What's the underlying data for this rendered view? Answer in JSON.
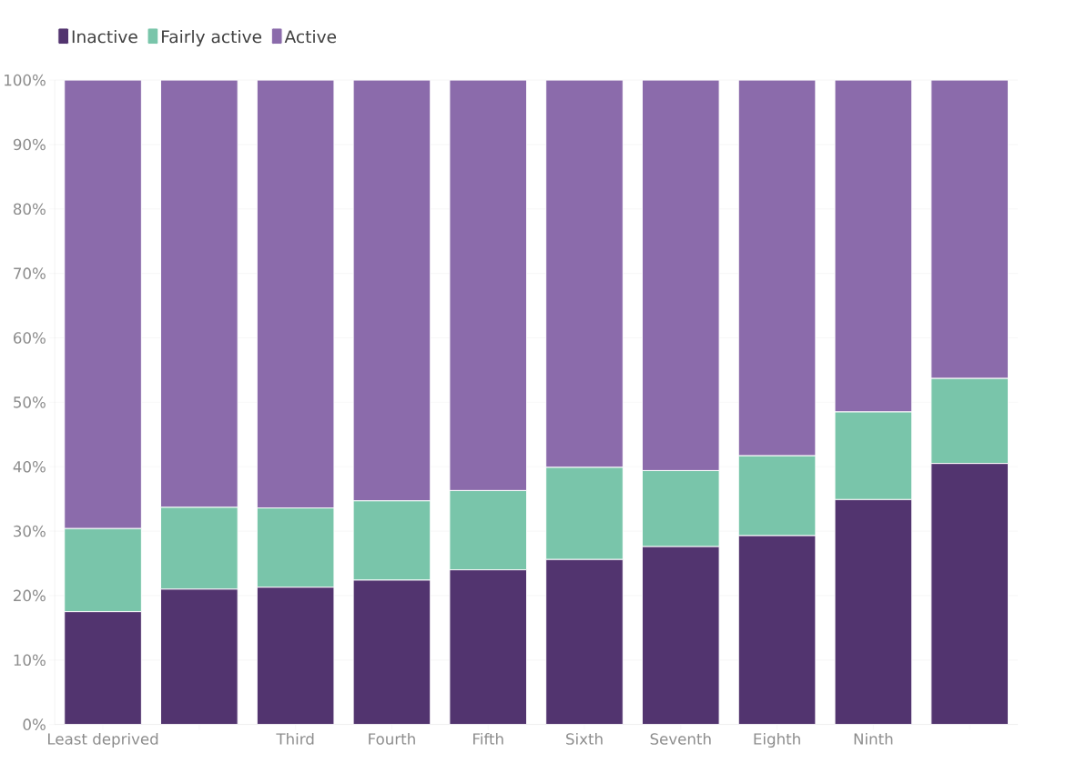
{
  "chart_data": {
    "type": "bar",
    "stacked": true,
    "categories": [
      "Least deprived",
      null,
      "Third",
      "Fourth",
      "Fifth",
      "Sixth",
      "Seventh",
      "Eighth",
      "Ninth",
      null
    ],
    "series": [
      {
        "name": "Inactive",
        "color": "#52346f",
        "values": [
          17.5,
          21.0,
          21.3,
          22.4,
          24.0,
          25.6,
          27.6,
          29.3,
          34.9,
          40.5
        ]
      },
      {
        "name": "Fairly active",
        "color": "#79c5aa",
        "values": [
          12.9,
          12.7,
          12.3,
          12.3,
          12.3,
          14.3,
          11.8,
          12.4,
          13.6,
          13.2
        ]
      },
      {
        "name": "Active",
        "color": "#8b6bab",
        "values": [
          69.6,
          66.3,
          66.4,
          65.3,
          63.7,
          60.1,
          60.6,
          58.3,
          51.5,
          46.3
        ]
      }
    ],
    "ylim": [
      0,
      100
    ],
    "yticks": [
      {
        "value": 0,
        "label": "0%"
      },
      {
        "value": 10,
        "label": "10%"
      },
      {
        "value": 20,
        "label": "20%"
      },
      {
        "value": 30,
        "label": "30%"
      },
      {
        "value": 40,
        "label": "40%"
      },
      {
        "value": 50,
        "label": "50%"
      },
      {
        "value": 60,
        "label": "60%"
      },
      {
        "value": 70,
        "label": "70%"
      },
      {
        "value": 80,
        "label": "80%"
      },
      {
        "value": 90,
        "label": "90%"
      },
      {
        "value": 100,
        "label": "100%"
      }
    ],
    "grid": "y",
    "legend": "top left"
  }
}
